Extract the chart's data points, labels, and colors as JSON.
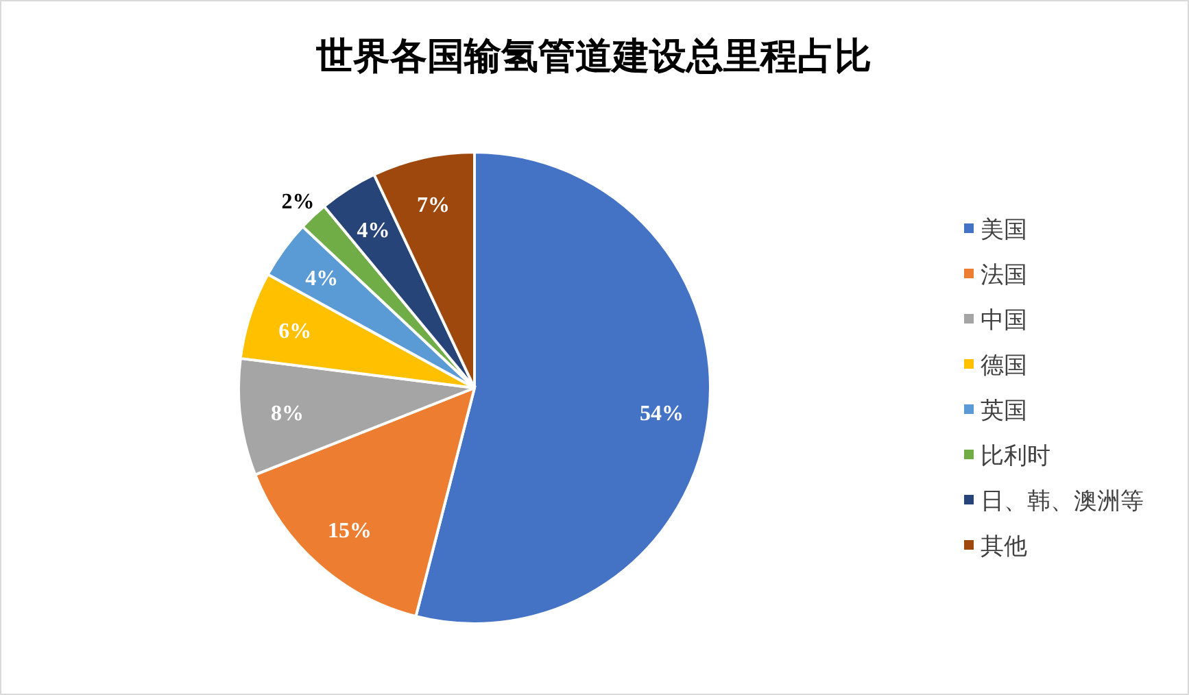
{
  "chart_data": {
    "type": "pie",
    "title": "世界各国输氢管道建设总里程占比",
    "categories": [
      "美国",
      "法国",
      "中国",
      "德国",
      "英国",
      "比利时",
      "日、韩、澳洲等",
      "其他"
    ],
    "values": [
      54,
      15,
      8,
      6,
      4,
      2,
      4,
      7
    ],
    "colors": [
      "#4472c4",
      "#ed7d31",
      "#a5a5a5",
      "#ffc000",
      "#5b9bd5",
      "#70ad47",
      "#264478",
      "#9e480e"
    ],
    "value_labels": [
      "54%",
      "15%",
      "8%",
      "6%",
      "4%",
      "2%",
      "4%",
      "7%"
    ],
    "legend": "right"
  }
}
